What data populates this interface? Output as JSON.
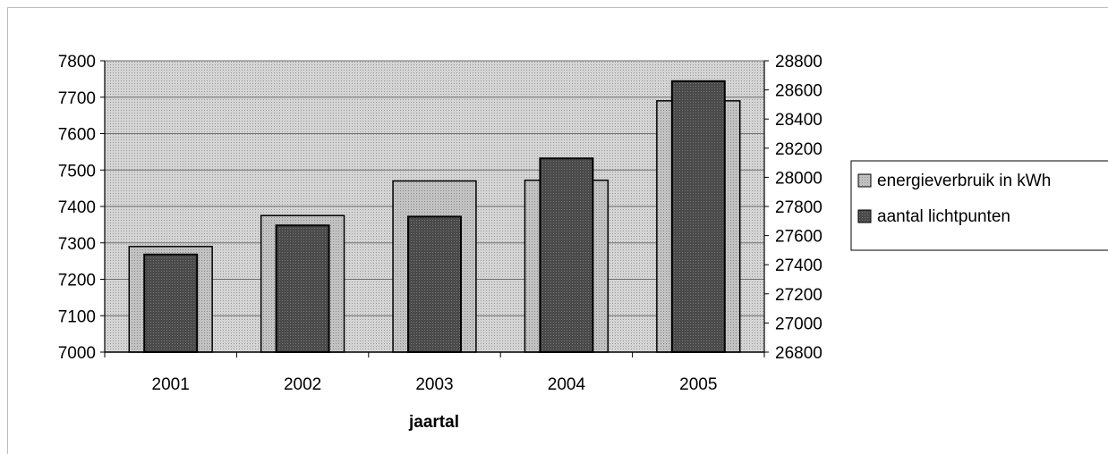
{
  "chart_data": {
    "type": "bar",
    "categories": [
      "2001",
      "2002",
      "2003",
      "2004",
      "2005"
    ],
    "xlabel": "jaartal",
    "series": [
      {
        "name": "energieverbruik in kWh",
        "axis": "left",
        "color": "#c4c4c4",
        "values": [
          7290,
          7375,
          7470,
          7472,
          7690
        ]
      },
      {
        "name": "aantal lichtpunten",
        "axis": "right",
        "color": "#4a4a4a",
        "values": [
          27470,
          27670,
          27730,
          28130,
          28660
        ]
      }
    ],
    "y_left": {
      "ylim": [
        7000,
        7800
      ],
      "ticks": [
        "7000",
        "7100",
        "7200",
        "7300",
        "7400",
        "7500",
        "7600",
        "7700",
        "7800"
      ]
    },
    "y_right": {
      "ylim": [
        26800,
        28800
      ],
      "ticks": [
        "26800",
        "27000",
        "27200",
        "27400",
        "27600",
        "27800",
        "28000",
        "28200",
        "28400",
        "28600",
        "28800"
      ]
    },
    "grid": true,
    "plot_background": "#c8c8c8",
    "legend_placement": "right"
  }
}
